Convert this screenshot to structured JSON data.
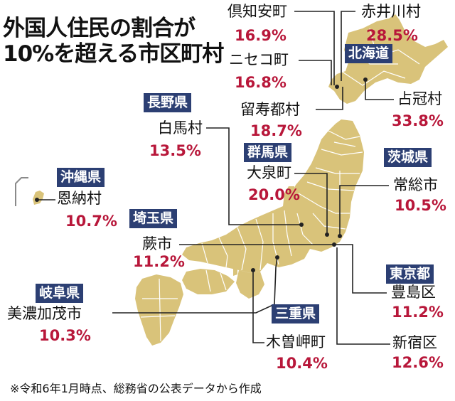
{
  "title": {
    "line1": "外国人住民の割合が",
    "line2": "10%を超える市区町村"
  },
  "colors": {
    "land": "#d9c37a",
    "border": "#ffffff",
    "pref_label_bg": "#2c3f73",
    "percent_text": "#b8173a",
    "leader_line": "#222222"
  },
  "prefectures": {
    "hokkaido": "北海道",
    "nagano": "長野県",
    "gunma": "群馬県",
    "ibaraki": "茨城県",
    "okinawa": "沖縄県",
    "saitama": "埼玉県",
    "tokyo": "東京都",
    "gifu": "岐阜県",
    "mie": "三重県"
  },
  "places": [
    {
      "id": "kutchan",
      "name": "倶知安町",
      "percent": "16.9%"
    },
    {
      "id": "akaigawa",
      "name": "赤井川村",
      "percent": "28.5%"
    },
    {
      "id": "niseko",
      "name": "ニセコ町",
      "percent": "16.8%"
    },
    {
      "id": "rusutsu",
      "name": "留寿都村",
      "percent": "18.7%"
    },
    {
      "id": "shimukappu",
      "name": "占冠村",
      "percent": "33.8%"
    },
    {
      "id": "hakuba",
      "name": "白馬村",
      "percent": "13.5%"
    },
    {
      "id": "oizumi",
      "name": "大泉町",
      "percent": "20.0%"
    },
    {
      "id": "joso",
      "name": "常総市",
      "percent": "10.5%"
    },
    {
      "id": "onna",
      "name": "恩納村",
      "percent": "10.7%"
    },
    {
      "id": "warabi",
      "name": "蕨市",
      "percent": "11.2%"
    },
    {
      "id": "toshima",
      "name": "豊島区",
      "percent": "11.2%"
    },
    {
      "id": "minokamo",
      "name": "美濃加茂市",
      "percent": "10.3%"
    },
    {
      "id": "kisosaki",
      "name": "木曽岬町",
      "percent": "10.4%"
    },
    {
      "id": "shinjuku",
      "name": "新宿区",
      "percent": "12.6%"
    }
  ],
  "footnote": "※令和6年1月時点、総務省の公表データから作成"
}
